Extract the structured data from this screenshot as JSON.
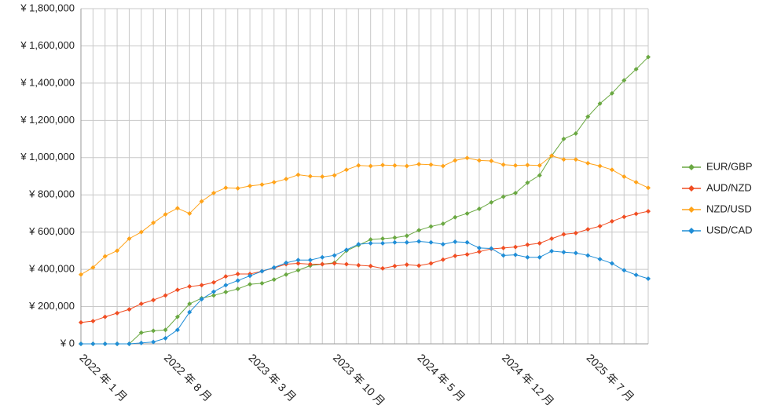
{
  "chart_data": {
    "type": "line",
    "categories": [
      "2022 年 1 月",
      null,
      null,
      null,
      null,
      null,
      null,
      "2022 年 8 月",
      null,
      null,
      null,
      null,
      null,
      null,
      "2023 年 3 月",
      null,
      null,
      null,
      null,
      null,
      null,
      "2023 年 10 月",
      null,
      null,
      null,
      null,
      null,
      null,
      "2024 年 5 月",
      null,
      null,
      null,
      null,
      null,
      null,
      "2024 年 12 月",
      null,
      null,
      null,
      null,
      null,
      null,
      "2025 年 7 月",
      null,
      null,
      null,
      null,
      null
    ],
    "series": [
      {
        "name": "EUR/GBP",
        "color": "#6aa842",
        "values": [
          0,
          0,
          0,
          0,
          0,
          60000,
          70000,
          75000,
          145000,
          215000,
          245000,
          260000,
          278000,
          295000,
          320000,
          325000,
          345000,
          372000,
          395000,
          420000,
          428000,
          435000,
          500000,
          530000,
          560000,
          565000,
          570000,
          580000,
          610000,
          630000,
          645000,
          680000,
          700000,
          725000,
          760000,
          790000,
          810000,
          865000,
          905000,
          1010000,
          1100000,
          1130000,
          1220000,
          1290000,
          1345000,
          1415000,
          1475000,
          1540000
        ]
      },
      {
        "name": "AUD/NZD",
        "color": "#f04e23",
        "values": [
          115000,
          122000,
          145000,
          165000,
          185000,
          215000,
          235000,
          260000,
          290000,
          308000,
          315000,
          330000,
          362000,
          375000,
          375000,
          390000,
          408000,
          428000,
          432000,
          428000,
          428000,
          432000,
          428000,
          422000,
          418000,
          405000,
          418000,
          425000,
          420000,
          432000,
          452000,
          472000,
          480000,
          495000,
          510000,
          515000,
          520000,
          532000,
          540000,
          565000,
          588000,
          595000,
          615000,
          632000,
          658000,
          682000,
          698000,
          712000
        ]
      },
      {
        "name": "NZD/USD",
        "color": "#ffa31a",
        "values": [
          372000,
          410000,
          470000,
          500000,
          565000,
          600000,
          650000,
          695000,
          728000,
          700000,
          765000,
          810000,
          838000,
          835000,
          848000,
          855000,
          868000,
          885000,
          908000,
          900000,
          898000,
          905000,
          935000,
          958000,
          955000,
          960000,
          958000,
          955000,
          965000,
          962000,
          955000,
          985000,
          998000,
          985000,
          982000,
          962000,
          958000,
          960000,
          958000,
          1010000,
          990000,
          990000,
          970000,
          955000,
          935000,
          898000,
          868000,
          838000
        ]
      },
      {
        "name": "USD/CAD",
        "color": "#1f8dd6",
        "values": [
          0,
          0,
          0,
          0,
          0,
          5000,
          10000,
          30000,
          75000,
          170000,
          240000,
          280000,
          315000,
          340000,
          365000,
          390000,
          410000,
          435000,
          450000,
          450000,
          465000,
          475000,
          505000,
          535000,
          540000,
          540000,
          545000,
          545000,
          550000,
          545000,
          535000,
          548000,
          545000,
          515000,
          512000,
          475000,
          478000,
          465000,
          465000,
          498000,
          492000,
          488000,
          475000,
          455000,
          432000,
          395000,
          370000,
          350000
        ]
      }
    ],
    "ylim": [
      0,
      1800000
    ],
    "yticks": [
      {
        "value": 0,
        "label": "¥ 0"
      },
      {
        "value": 200000,
        "label": "¥ 200,000"
      },
      {
        "value": 400000,
        "label": "¥ 400,000"
      },
      {
        "value": 600000,
        "label": "¥ 600,000"
      },
      {
        "value": 800000,
        "label": "¥ 800,000"
      },
      {
        "value": 1000000,
        "label": "¥ 1,000,000"
      },
      {
        "value": 1200000,
        "label": "¥ 1,200,000"
      },
      {
        "value": 1400000,
        "label": "¥ 1,400,000"
      },
      {
        "value": 1600000,
        "label": "¥ 1,600,000"
      },
      {
        "value": 1800000,
        "label": "¥ 1,800,000"
      }
    ],
    "grid": true,
    "legend": "right"
  }
}
